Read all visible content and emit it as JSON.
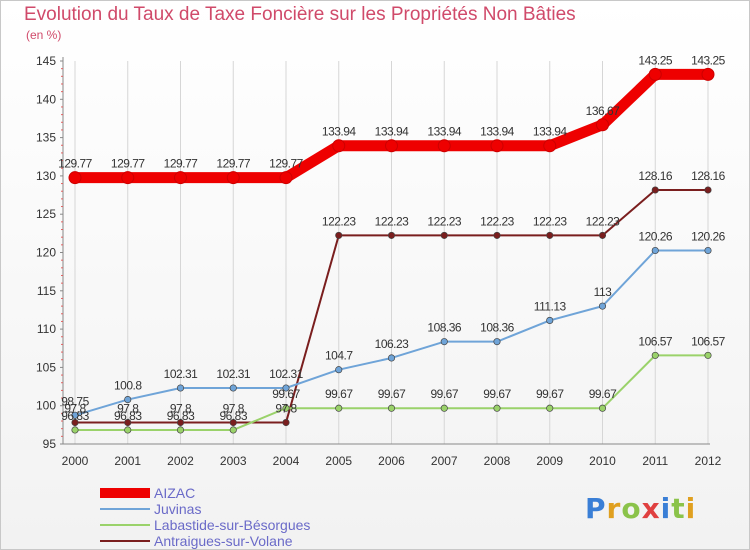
{
  "header": {
    "title": "Evolution du Taux de Taxe Foncière sur les Propriétés Non Bâties",
    "subtitle": "(en %)"
  },
  "logo": {
    "text": "Proxiti",
    "colors": [
      "#3a7fd6",
      "#e0a020",
      "#8bc34a",
      "#e04040",
      "#3a7fd6",
      "#8bc34a",
      "#e0a020"
    ]
  },
  "chart_data": {
    "type": "line",
    "x": [
      2000,
      2001,
      2002,
      2003,
      2004,
      2005,
      2006,
      2007,
      2008,
      2009,
      2010,
      2011,
      2012
    ],
    "xticks": [
      "2000",
      "2001",
      "2002",
      "2003",
      "2004",
      "2005",
      "2006",
      "2007",
      "2008",
      "2009",
      "2010",
      "2011",
      "2012"
    ],
    "ylim": [
      95,
      145
    ],
    "yticks": [
      "95",
      "100",
      "105",
      "110",
      "115",
      "120",
      "125",
      "130",
      "135",
      "140",
      "145"
    ],
    "grid": "vertical",
    "legend_position": "bottom-left",
    "series": [
      {
        "name": "AIZAC",
        "color": "#ee0000",
        "values": [
          129.77,
          129.77,
          129.77,
          129.77,
          129.77,
          133.94,
          133.94,
          133.94,
          133.94,
          133.94,
          136.67,
          143.25,
          143.25
        ],
        "labels": [
          "129.77",
          "129.77",
          "129.77",
          "129.77",
          "129.77",
          "133.94",
          "133.94",
          "133.94",
          "133.94",
          "133.94",
          "136.67",
          "143.25",
          "143.25"
        ]
      },
      {
        "name": "Juvinas",
        "color": "#6fa4d8",
        "values": [
          98.75,
          100.8,
          102.31,
          102.31,
          102.31,
          104.7,
          106.23,
          108.36,
          108.36,
          111.13,
          113,
          120.26,
          120.26
        ],
        "labels": [
          "98.75",
          "100.8",
          "102.31",
          "102.31",
          "102.31",
          "104.7",
          "106.23",
          "108.36",
          "108.36",
          "111.13",
          "113",
          "120.26",
          "120.26"
        ]
      },
      {
        "name": "Labastide-sur-Bésorgues",
        "color": "#9ad26a",
        "values": [
          96.83,
          96.83,
          96.83,
          96.83,
          99.67,
          99.67,
          99.67,
          99.67,
          99.67,
          99.67,
          99.67,
          106.57,
          106.57
        ],
        "labels": [
          "96.83",
          "96.83",
          "96.83",
          "96.83",
          "99.67",
          "99.67",
          "99.67",
          "99.67",
          "99.67",
          "99.67",
          "99.67",
          "106.57",
          "106.57"
        ]
      },
      {
        "name": "Antraigues-sur-Volane",
        "color": "#7a1e1e",
        "values": [
          97.8,
          97.8,
          97.8,
          97.8,
          97.8,
          122.23,
          122.23,
          122.23,
          122.23,
          122.23,
          122.23,
          128.16,
          128.16
        ],
        "labels": [
          "97.8",
          "97.8",
          "97.8",
          "97.8",
          "97.8",
          "122.23",
          "122.23",
          "122.23",
          "122.23",
          "122.23",
          "122.23",
          "128.16",
          "128.16"
        ]
      }
    ]
  }
}
